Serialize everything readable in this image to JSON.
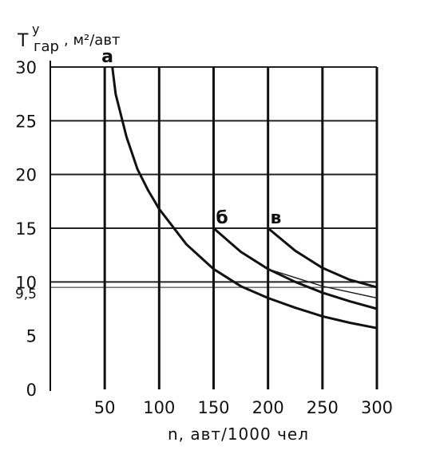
{
  "chart_data": {
    "type": "line",
    "title": "",
    "ylabel_main": "T",
    "ylabel_sup": "у",
    "ylabel_sub": "гар",
    "ylabel_unit": ", м²/авт",
    "xlabel": "n, авт/1000 чел",
    "xlim": [
      0,
      300
    ],
    "ylim": [
      0,
      30
    ],
    "x_ticks": [
      50,
      100,
      150,
      200,
      250,
      300
    ],
    "y_ticks": [
      {
        "value": 0,
        "label": "0"
      },
      {
        "value": 5,
        "label": "5"
      },
      {
        "value": 9.5,
        "label": "9,5"
      },
      {
        "value": 10,
        "label": "10"
      },
      {
        "value": 15,
        "label": "15"
      },
      {
        "value": 20,
        "label": "20"
      },
      {
        "value": 25,
        "label": "25"
      },
      {
        "value": 30,
        "label": "30"
      }
    ],
    "hgrid": [
      30,
      25,
      20,
      15,
      10,
      9.5
    ],
    "vgrid": [
      50,
      100,
      150,
      200,
      250,
      300
    ],
    "series": [
      {
        "name": "а",
        "label_at": [
          50,
          30
        ],
        "x": [
          57,
          60,
          70,
          80,
          90,
          100,
          125,
          150,
          175,
          200,
          225,
          250,
          275,
          300
        ],
        "y": [
          30,
          27.5,
          23.5,
          20.5,
          18.5,
          16.8,
          13.5,
          11.2,
          9.6,
          8.5,
          7.6,
          6.8,
          6.2,
          5.7
        ],
        "bold": true
      },
      {
        "name": "б",
        "label_at": [
          155,
          15
        ],
        "x": [
          150,
          175,
          200,
          225,
          250,
          275,
          300
        ],
        "y": [
          15,
          12.8,
          11.2,
          10,
          9,
          8.2,
          7.5
        ],
        "bold": true
      },
      {
        "name": "в",
        "label_at": [
          205,
          15
        ],
        "x": [
          200,
          225,
          250,
          275,
          300
        ],
        "y": [
          15,
          12.9,
          11.3,
          10.2,
          9.5
        ],
        "bold": true
      }
    ],
    "extra_lines": [
      {
        "x": [
          200,
          250,
          300
        ],
        "y": [
          11.2,
          9.6,
          8.5
        ]
      }
    ],
    "grid": true
  }
}
